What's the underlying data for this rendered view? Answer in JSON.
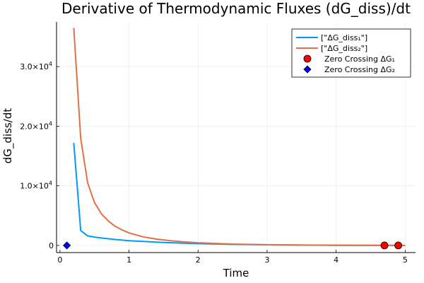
{
  "chart_data": {
    "type": "line",
    "title": "Derivative of Thermodynamic Fluxes (dG_diss)/dt",
    "xlabel": "Time",
    "ylabel": "dG_diss/dt",
    "xlim": [
      -0.05,
      5.15
    ],
    "ylim": [
      -1200,
      37500
    ],
    "xticks": [
      0,
      1,
      2,
      3,
      4,
      5
    ],
    "xtick_labels": [
      "0",
      "1",
      "2",
      "3",
      "4",
      "5"
    ],
    "yticks": [
      {
        "value": 0,
        "mantissa": "0",
        "exponent": ""
      },
      {
        "value": 10000,
        "mantissa": "1.0×10",
        "exponent": "4"
      },
      {
        "value": 20000,
        "mantissa": "2.0×10",
        "exponent": "4"
      },
      {
        "value": 30000,
        "mantissa": "3.0×10",
        "exponent": "4"
      }
    ],
    "grid": true,
    "legend_position": "top-right",
    "series": [
      {
        "name": "[\"ΔG_diss₁\"]",
        "kind": "line",
        "color": "#009AFA",
        "x": [
          0.2,
          0.3,
          0.4,
          0.5,
          0.6,
          0.8,
          1.0,
          1.5,
          2.0,
          2.5,
          3.0,
          3.5,
          4.0,
          4.5,
          5.0
        ],
        "y": [
          17200,
          2500,
          1600,
          1400,
          1250,
          1000,
          800,
          500,
          300,
          180,
          100,
          60,
          30,
          10,
          0
        ]
      },
      {
        "name": "[\"ΔG_diss₂\"]",
        "kind": "line",
        "color": "#E26F46",
        "x": [
          0.2,
          0.3,
          0.4,
          0.5,
          0.6,
          0.7,
          0.8,
          0.9,
          1.0,
          1.2,
          1.4,
          1.6,
          1.8,
          2.0,
          2.5,
          3.0,
          3.5,
          4.0,
          4.5,
          5.0
        ],
        "y": [
          36500,
          18000,
          10500,
          7200,
          5300,
          4100,
          3200,
          2600,
          2100,
          1450,
          1050,
          780,
          590,
          450,
          230,
          120,
          60,
          25,
          8,
          0
        ]
      },
      {
        "name": "Zero Crossing ΔG₁",
        "kind": "marker",
        "marker": "circle",
        "color": "#FF0000",
        "x": [
          4.7,
          4.9
        ],
        "y": [
          0,
          0
        ]
      },
      {
        "name": "Zero Crossing ΔG₂",
        "kind": "marker",
        "marker": "diamond",
        "color": "#0000FF",
        "x": [
          0.1
        ],
        "y": [
          0
        ]
      }
    ]
  }
}
